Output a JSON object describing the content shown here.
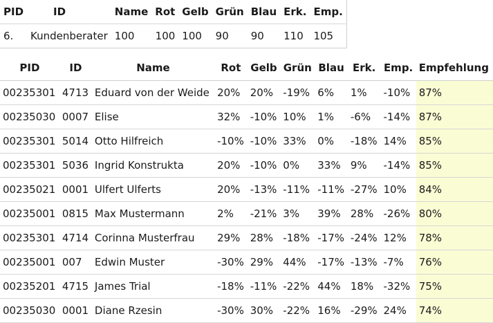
{
  "top": {
    "headers": [
      "PID",
      "ID",
      "Name",
      "Rot",
      "Gelb",
      "Grün",
      "Blau",
      "Erk.",
      "Emp."
    ],
    "row": [
      "6.",
      "Kundenberater",
      "100",
      "100",
      "100",
      "90",
      "90",
      "110",
      "105"
    ]
  },
  "main": {
    "headers": [
      "PID",
      "ID",
      "Name",
      "Rot",
      "Gelb",
      "Grün",
      "Blau",
      "Erk.",
      "Emp.",
      "Empfehlung"
    ],
    "rows": [
      [
        "00235301",
        "4713",
        "Eduard von der Weide",
        "20%",
        "20%",
        "-19%",
        "6%",
        "1%",
        "-10%",
        "87%"
      ],
      [
        "00235030",
        "0007",
        "Elise",
        "32%",
        "-10%",
        "10%",
        "1%",
        "-6%",
        "-14%",
        "87%"
      ],
      [
        "00235301",
        "5014",
        "Otto Hilfreich",
        "-10%",
        "-10%",
        "33%",
        "0%",
        "-18%",
        "14%",
        "85%"
      ],
      [
        "00235301",
        "5036",
        "Ingrid Konstrukta",
        "20%",
        "-10%",
        "0%",
        "33%",
        "9%",
        "-14%",
        "85%"
      ],
      [
        "00235021",
        "0001",
        "Ulfert Ulferts",
        "20%",
        "-13%",
        "-11%",
        "-11%",
        "-27%",
        "10%",
        "84%"
      ],
      [
        "00235001",
        "0815",
        "Max Mustermann",
        "2%",
        "-21%",
        "3%",
        "39%",
        "28%",
        "-26%",
        "80%"
      ],
      [
        "00235301",
        "4714",
        "Corinna Musterfrau",
        "29%",
        "28%",
        "-18%",
        "-17%",
        "-24%",
        "12%",
        "78%"
      ],
      [
        "00235001",
        "007",
        "Edwin Muster",
        "-30%",
        "29%",
        "44%",
        "-17%",
        "-13%",
        "-7%",
        "76%"
      ],
      [
        "00235201",
        "4715",
        "James Trial",
        "-18%",
        "-11%",
        "-22%",
        "44%",
        "18%",
        "-32%",
        "75%"
      ],
      [
        "00235030",
        "0001",
        "Diane Rzesin",
        "-30%",
        "30%",
        "-22%",
        "16%",
        "-29%",
        "24%",
        "74%"
      ]
    ]
  },
  "colors": {
    "highlight": "#fafcd4",
    "border": "#d6d6d6"
  }
}
